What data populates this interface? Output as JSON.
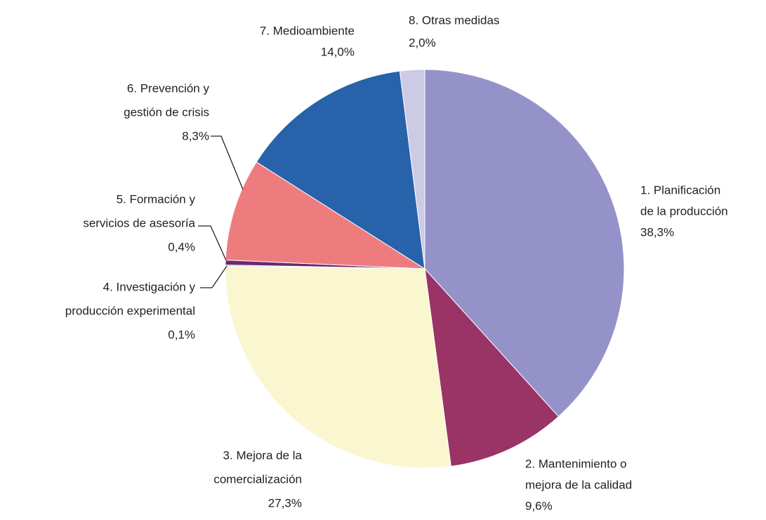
{
  "chart_data": {
    "type": "pie",
    "categories": [
      [
        "1. Planificación",
        "de la producción"
      ],
      [
        "2. Mantenimiento o",
        "mejora de la calidad"
      ],
      [
        "3. Mejora de la",
        "comercialización"
      ],
      [
        "4. Investigación y",
        "producción experimental"
      ],
      [
        "5. Formación y",
        "servicios de asesoría"
      ],
      [
        "6. Prevención y",
        "gestión de crisis"
      ],
      [
        "7. Medioambiente"
      ],
      [
        "8. Otras medidas"
      ]
    ],
    "values": [
      38.3,
      9.6,
      27.3,
      0.1,
      0.4,
      8.3,
      14.0,
      2.0
    ],
    "value_labels": [
      "38,3%",
      "9,6%",
      "27,3%",
      "0,1%",
      "0,4%",
      "8,3%",
      "14,0%",
      "2,0%"
    ],
    "colors": [
      "#9592c9",
      "#9a3366",
      "#faf6cf",
      "#b0b8d8",
      "#6a2a6e",
      "#ee7c7e",
      "#2762ab",
      "#cdcae6"
    ]
  }
}
